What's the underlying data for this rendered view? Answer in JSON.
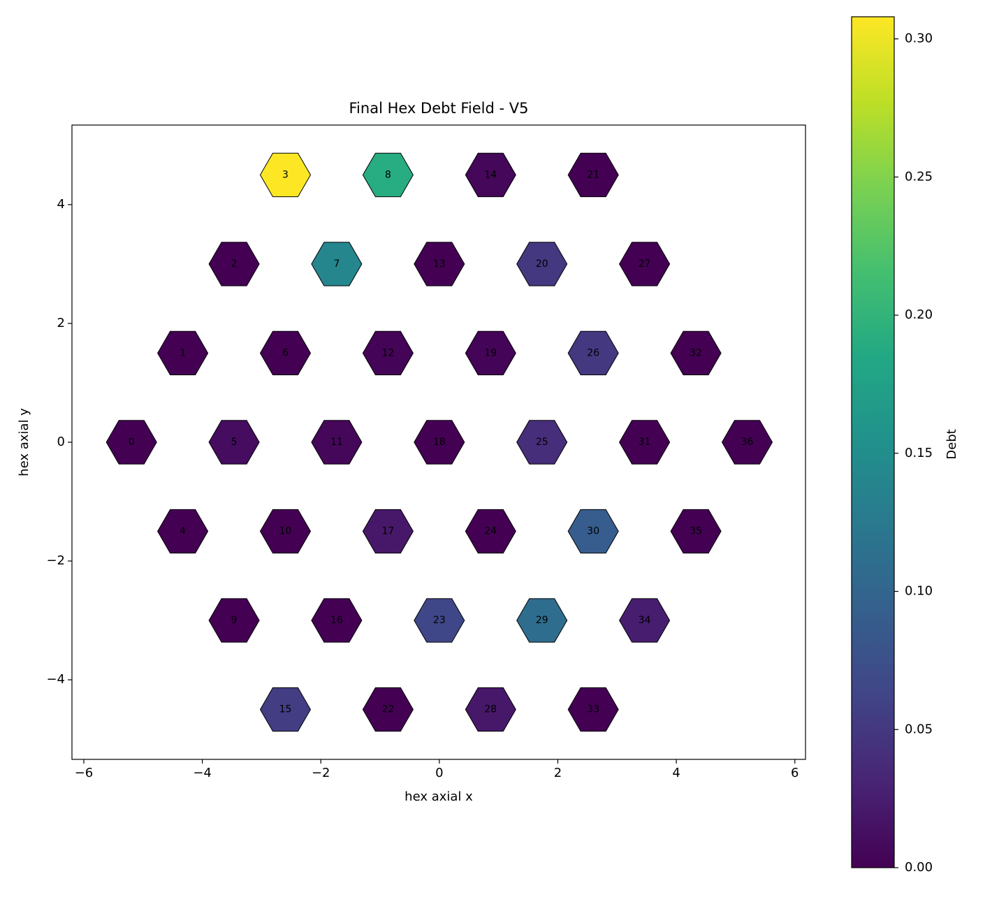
{
  "chart_data": {
    "type": "hexmap",
    "title": "Final Hex Debt Field - V5",
    "x_label": "hex axial x",
    "y_label": "hex axial y",
    "colorbar_label": "Debt",
    "colormap": "viridis",
    "ids": [
      0,
      1,
      2,
      3,
      4,
      5,
      6,
      7,
      8,
      9,
      10,
      11,
      12,
      13,
      14,
      15,
      16,
      17,
      18,
      19,
      20,
      21,
      22,
      23,
      24,
      25,
      26,
      27,
      28,
      29,
      30,
      31,
      32,
      33,
      34,
      35,
      36
    ],
    "x": [
      -5.196,
      -4.33,
      -3.464,
      -2.598,
      -4.33,
      -3.464,
      -2.598,
      -1.732,
      -0.866,
      -3.464,
      -2.598,
      -1.732,
      -0.866,
      0,
      0.866,
      -2.598,
      -1.732,
      -0.866,
      0,
      0.866,
      1.732,
      2.598,
      -0.866,
      0,
      0.866,
      1.732,
      2.598,
      3.464,
      0.866,
      1.732,
      2.598,
      3.464,
      4.33,
      2.598,
      3.464,
      4.33,
      5.196
    ],
    "y": [
      0,
      1.5,
      3,
      4.5,
      -1.5,
      0,
      1.5,
      3,
      4.5,
      -3,
      -1.5,
      0,
      1.5,
      3,
      4.5,
      -4.5,
      -3,
      -1.5,
      0,
      1.5,
      3,
      4.5,
      -4.5,
      -3,
      -1.5,
      0,
      1.5,
      3,
      -4.5,
      -3,
      -1.5,
      0,
      1.5,
      -4.5,
      -3,
      -1.5,
      0
    ],
    "values": [
      0,
      0,
      0,
      0.308,
      0,
      0.01,
      0,
      0.14,
      0.19,
      0,
      0,
      0.005,
      0.003,
      0,
      0.005,
      0.055,
      0,
      0.02,
      0,
      0.003,
      0.05,
      0,
      0,
      0.065,
      0,
      0.04,
      0.05,
      0,
      0.02,
      0.11,
      0.09,
      0,
      0,
      0,
      0.025,
      0,
      0
    ],
    "xlim": [
      -6.2,
      6.18
    ],
    "ylim": [
      -5.34,
      5.34
    ],
    "xticks": [
      {
        "value": -6,
        "label": "−6"
      },
      {
        "value": -4,
        "label": "−4"
      },
      {
        "value": -2,
        "label": "−2"
      },
      0,
      2,
      4,
      6
    ],
    "yticks": [
      {
        "value": -4,
        "label": "−4"
      },
      {
        "value": -2,
        "label": "−2"
      },
      0,
      2,
      4
    ],
    "clim": [
      0,
      0.308
    ],
    "cticks": [
      {
        "value": 0,
        "label": "0.00"
      },
      {
        "value": 0.05,
        "label": "0.05"
      },
      {
        "value": 0.1,
        "label": "0.10"
      },
      {
        "value": 0.15,
        "label": "0.15"
      },
      {
        "value": 0.2,
        "label": "0.20"
      },
      {
        "value": 0.25,
        "label": "0.25"
      },
      {
        "value": 0.3,
        "label": "0.30"
      }
    ]
  }
}
